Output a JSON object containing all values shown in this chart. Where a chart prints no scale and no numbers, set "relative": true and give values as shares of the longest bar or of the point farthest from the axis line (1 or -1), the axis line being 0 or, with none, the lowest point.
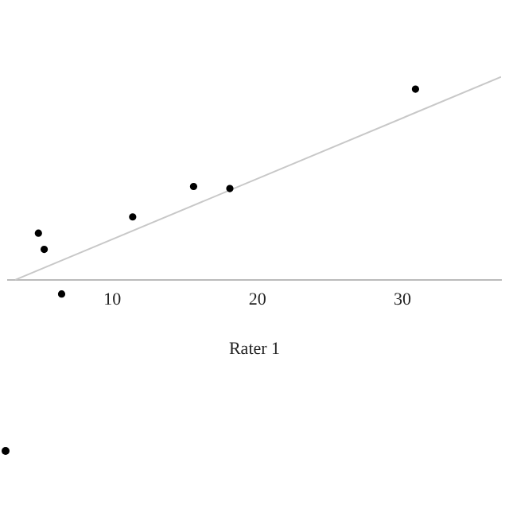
{
  "chart_data": {
    "type": "scatter",
    "xlabel": "Rater 1",
    "relative": true,
    "xlim": [
      2.8,
      36.8
    ],
    "xticks": [
      10,
      20,
      30
    ],
    "grid": false,
    "legend": false,
    "marker": "circle",
    "tick_labels": "x",
    "series": [
      {
        "color": "#000000",
        "x": [
          4.9,
          5.3,
          6.5,
          11.4,
          15.6,
          18.1,
          30.9
        ],
        "values": [
          0.23,
          0.15,
          -0.07,
          0.31,
          0.46,
          0.45,
          0.94
        ]
      },
      {
        "type": "line",
        "marker": "none",
        "color": "#c8c8c8",
        "x": [
          3.3,
          36.8
        ],
        "values": [
          0,
          1
        ]
      }
    ]
  }
}
